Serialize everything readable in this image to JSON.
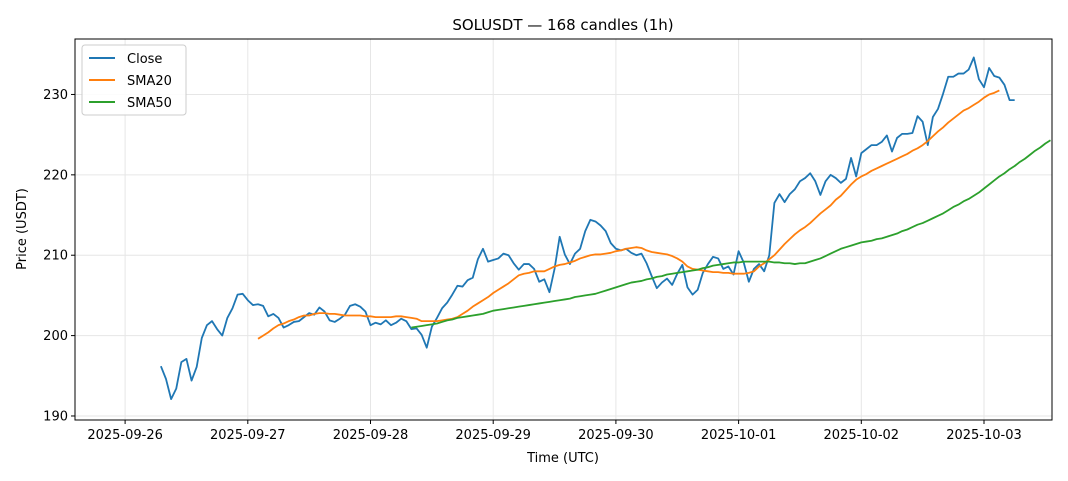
{
  "chart_data": {
    "type": "line",
    "title": "SOLUSDT — 168 candles (1h)",
    "xlabel": "Time (UTC)",
    "ylabel": "Price (USDT)",
    "x_ticks": [
      "2025-09-26",
      "2025-09-27",
      "2025-09-28",
      "2025-09-29",
      "2025-09-30",
      "2025-10-01",
      "2025-10-02",
      "2025-10-03"
    ],
    "y_ticks": [
      190,
      200,
      210,
      220,
      230
    ],
    "ylim": [
      189.5,
      236.9
    ],
    "xlim_hours": [
      -9.8,
      181.3
    ],
    "x_start_hour": 7,
    "grid": true,
    "legend_position": "top-left",
    "colors": {
      "close": "#1f77b4",
      "sma20": "#ff7f0e",
      "sma50": "#2ca02c",
      "grid": "#e6e6e6"
    },
    "series": [
      {
        "name": "Close",
        "key": "close",
        "start_index": 0,
        "values": [
          196.2,
          194.6,
          192.1,
          193.4,
          196.7,
          197.1,
          194.4,
          196.1,
          199.7,
          201.3,
          201.8,
          200.8,
          200.0,
          202.2,
          203.4,
          205.1,
          205.2,
          204.4,
          203.8,
          203.9,
          203.7,
          202.4,
          202.7,
          202.2,
          201.0,
          201.3,
          201.7,
          201.8,
          202.3,
          202.8,
          202.6,
          203.5,
          203.0,
          201.9,
          201.7,
          202.1,
          202.6,
          203.7,
          203.9,
          203.6,
          203.0,
          201.3,
          201.6,
          201.4,
          201.9,
          201.3,
          201.6,
          202.1,
          201.8,
          200.8,
          200.9,
          200.1,
          198.5,
          201.1,
          202.2,
          203.4,
          204.1,
          205.1,
          206.2,
          206.1,
          206.9,
          207.2,
          209.5,
          210.8,
          209.2,
          209.4,
          209.6,
          210.2,
          210.0,
          209.0,
          208.2,
          208.9,
          208.9,
          208.3,
          206.7,
          207.0,
          205.4,
          208.3,
          212.3,
          210.1,
          208.9,
          210.2,
          210.8,
          213.0,
          214.4,
          214.2,
          213.7,
          213.0,
          211.5,
          210.8,
          210.6,
          210.8,
          210.3,
          210.0,
          210.2,
          209.0,
          207.4,
          205.9,
          206.6,
          207.1,
          206.3,
          207.7,
          208.8,
          206.0,
          205.1,
          205.7,
          207.8,
          208.9,
          209.8,
          209.6,
          208.3,
          208.6,
          207.6,
          210.5,
          209.1,
          206.7,
          208.3,
          208.9,
          208.0,
          210.0,
          216.5,
          217.6,
          216.6,
          217.6,
          218.2,
          219.2,
          219.6,
          220.2,
          219.2,
          217.5,
          219.2,
          220.0,
          219.6,
          219.0,
          219.5,
          222.1,
          219.8,
          222.7,
          223.2,
          223.7,
          223.7,
          224.1,
          224.9,
          222.9,
          224.6,
          225.1,
          225.1,
          225.2,
          227.3,
          226.6,
          223.7,
          227.2,
          228.2,
          230.1,
          232.2,
          232.2,
          232.6,
          232.6,
          233.1,
          234.6,
          231.9,
          230.9,
          233.3,
          232.3,
          232.1,
          231.2,
          229.3,
          229.3
        ]
      },
      {
        "name": "SMA20",
        "key": "sma20",
        "start_index": 19,
        "values": [
          199.6,
          200.0,
          200.4,
          200.9,
          201.3,
          201.5,
          201.8,
          202.0,
          202.3,
          202.5,
          202.5,
          202.7,
          202.8,
          202.8,
          202.7,
          202.7,
          202.6,
          202.5,
          202.5,
          202.5,
          202.5,
          202.4,
          202.4,
          202.3,
          202.3,
          202.3,
          202.3,
          202.4,
          202.4,
          202.3,
          202.2,
          202.1,
          201.8,
          201.8,
          201.8,
          201.8,
          201.9,
          202.0,
          202.1,
          202.3,
          202.7,
          203.1,
          203.6,
          204.0,
          204.4,
          204.8,
          205.3,
          205.7,
          206.1,
          206.5,
          207.0,
          207.5,
          207.7,
          207.8,
          208.0,
          208.0,
          208.0,
          208.3,
          208.6,
          208.8,
          208.9,
          209.1,
          209.3,
          209.6,
          209.8,
          210.0,
          210.1,
          210.1,
          210.2,
          210.3,
          210.5,
          210.6,
          210.8,
          210.9,
          211.0,
          210.9,
          210.6,
          210.4,
          210.3,
          210.2,
          210.1,
          209.9,
          209.6,
          209.2,
          208.6,
          208.3,
          208.2,
          208.1,
          208.0,
          207.9,
          207.9,
          207.8,
          207.8,
          207.7,
          207.7,
          207.7,
          207.8,
          208.0,
          208.6,
          209.0,
          209.5,
          210.0,
          210.7,
          211.4,
          212.0,
          212.6,
          213.1,
          213.5,
          214.0,
          214.6,
          215.2,
          215.7,
          216.2,
          216.9,
          217.4,
          218.1,
          218.8,
          219.4,
          219.8,
          220.1,
          220.5,
          220.8,
          221.1,
          221.4,
          221.7,
          222.0,
          222.3,
          222.6,
          223.0,
          223.3,
          223.7,
          224.2,
          224.8,
          225.4,
          225.9,
          226.5,
          227.0,
          227.5,
          228.0,
          228.3,
          228.7,
          229.1,
          229.6,
          230.0,
          230.2,
          230.5
        ]
      },
      {
        "name": "SMA50",
        "key": "sma50",
        "start_index": 49,
        "values": [
          201.0,
          201.1,
          201.2,
          201.3,
          201.4,
          201.5,
          201.7,
          201.9,
          202.0,
          202.2,
          202.3,
          202.4,
          202.5,
          202.6,
          202.7,
          202.9,
          203.1,
          203.2,
          203.3,
          203.4,
          203.5,
          203.6,
          203.7,
          203.8,
          203.9,
          204.0,
          204.1,
          204.2,
          204.3,
          204.4,
          204.5,
          204.6,
          204.8,
          204.9,
          205.0,
          205.1,
          205.2,
          205.4,
          205.6,
          205.8,
          206.0,
          206.2,
          206.4,
          206.6,
          206.7,
          206.8,
          207.0,
          207.1,
          207.3,
          207.4,
          207.6,
          207.7,
          207.8,
          207.9,
          208.0,
          208.1,
          208.2,
          208.4,
          208.5,
          208.7,
          208.8,
          208.9,
          209.0,
          209.1,
          209.1,
          209.2,
          209.2,
          209.2,
          209.2,
          209.2,
          209.2,
          209.1,
          209.1,
          209.0,
          209.0,
          208.9,
          209.0,
          209.0,
          209.2,
          209.4,
          209.6,
          209.9,
          210.2,
          210.5,
          210.8,
          211.0,
          211.2,
          211.4,
          211.6,
          211.7,
          211.8,
          212.0,
          212.1,
          212.3,
          212.5,
          212.7,
          213.0,
          213.2,
          213.5,
          213.8,
          214.0,
          214.3,
          214.6,
          214.9,
          215.2,
          215.6,
          216.0,
          216.3,
          216.7,
          217.0,
          217.4,
          217.8,
          218.3,
          218.8,
          219.3,
          219.8,
          220.2,
          220.7,
          221.1,
          221.6,
          222.0,
          222.5,
          223.0,
          223.4,
          223.9,
          224.3
        ]
      }
    ]
  }
}
